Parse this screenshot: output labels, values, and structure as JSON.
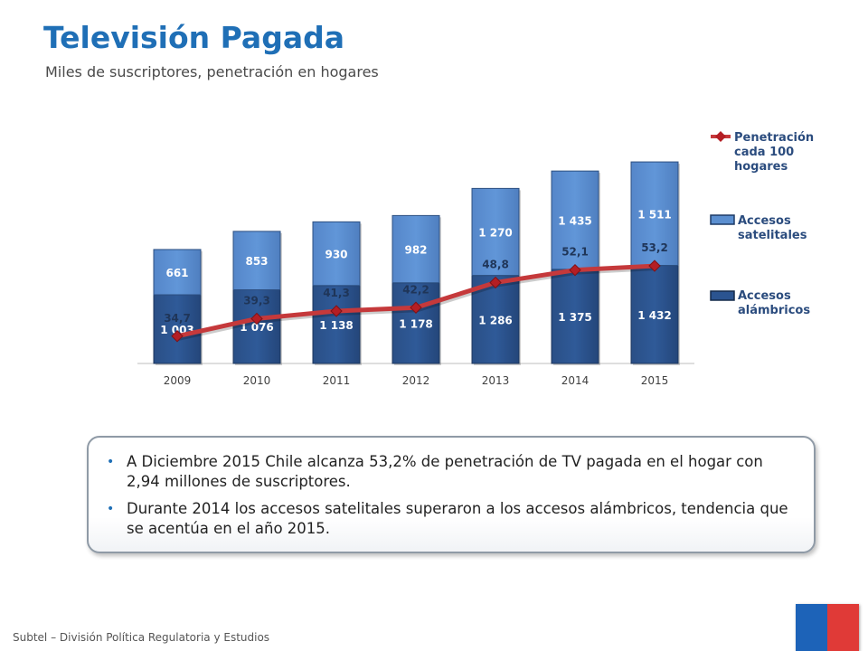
{
  "header": {
    "title": "Televisión Pagada",
    "subtitle": "Miles de suscriptores, penetración en hogares"
  },
  "chart_data": {
    "type": "bar",
    "stacked": true,
    "categories": [
      "2009",
      "2010",
      "2011",
      "2012",
      "2013",
      "2014",
      "2015"
    ],
    "series": [
      {
        "name": "Accesos alámbricos",
        "type": "bar",
        "color": "#2b5490",
        "values": [
          1003,
          1076,
          1138,
          1178,
          1286,
          1375,
          1432
        ],
        "labels": [
          "1 003",
          "1 076",
          "1 138",
          "1 178",
          "1 286",
          "1 375",
          "1 432"
        ]
      },
      {
        "name": "Accesos satelitales",
        "type": "bar",
        "color": "#5b8fd0",
        "values": [
          661,
          853,
          930,
          982,
          1270,
          1435,
          1511
        ],
        "labels": [
          "661",
          "853",
          "930",
          "982",
          "1 270",
          "1 435",
          "1 511"
        ]
      },
      {
        "name": "Penetración cada 100 hogares",
        "type": "line",
        "color": "#c0393b",
        "values": [
          34.7,
          39.3,
          41.3,
          42.2,
          48.8,
          52.1,
          53.2
        ],
        "labels": [
          "34,7",
          "39,3",
          "41,3",
          "42,2",
          "48,8",
          "52,1",
          "53,2"
        ]
      }
    ],
    "legend_position": "right",
    "grid": false
  },
  "bullets": [
    "A Diciembre 2015 Chile alcanza 53,2% de penetración de TV pagada en el hogar con 2,94 millones de suscriptores.",
    "Durante 2014 los accesos satelitales superaron a los accesos alámbricos, tendencia que se acentúa en el año 2015."
  ],
  "footer": {
    "text": "Subtel – División Política Regulatoria y Estudios"
  }
}
